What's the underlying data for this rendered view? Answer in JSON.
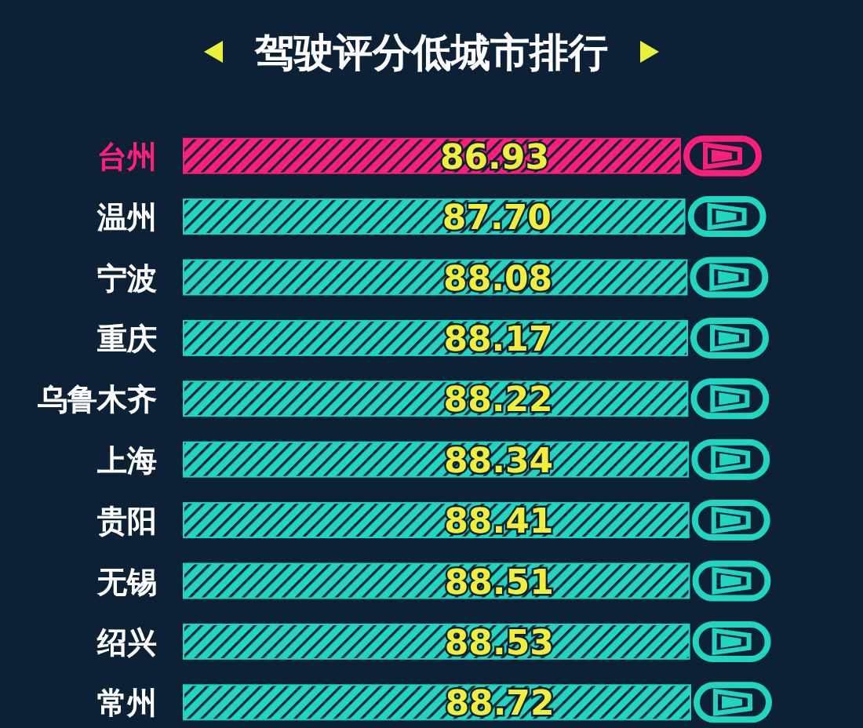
{
  "chart_data": {
    "type": "bar",
    "orientation": "horizontal",
    "title": "驾驶评分低城市排行",
    "categories": [
      "台州",
      "温州",
      "宁波",
      "重庆",
      "乌鲁木齐",
      "上海",
      "贵阳",
      "无锡",
      "绍兴",
      "常州"
    ],
    "values": [
      86.93,
      87.7,
      88.08,
      88.17,
      88.22,
      88.34,
      88.41,
      88.51,
      88.53,
      88.72
    ],
    "value_labels": [
      "86.93",
      "87.70",
      "88.08",
      "88.17",
      "88.22",
      "88.34",
      "88.41",
      "88.51",
      "88.53",
      "88.72"
    ],
    "colors": [
      "#ff1f7a",
      "#1fd6c0",
      "#1fd6c0",
      "#1fd6c0",
      "#1fd6c0",
      "#1fd6c0",
      "#1fd6c0",
      "#1fd6c0",
      "#1fd6c0",
      "#1fd6c0"
    ]
  }
}
